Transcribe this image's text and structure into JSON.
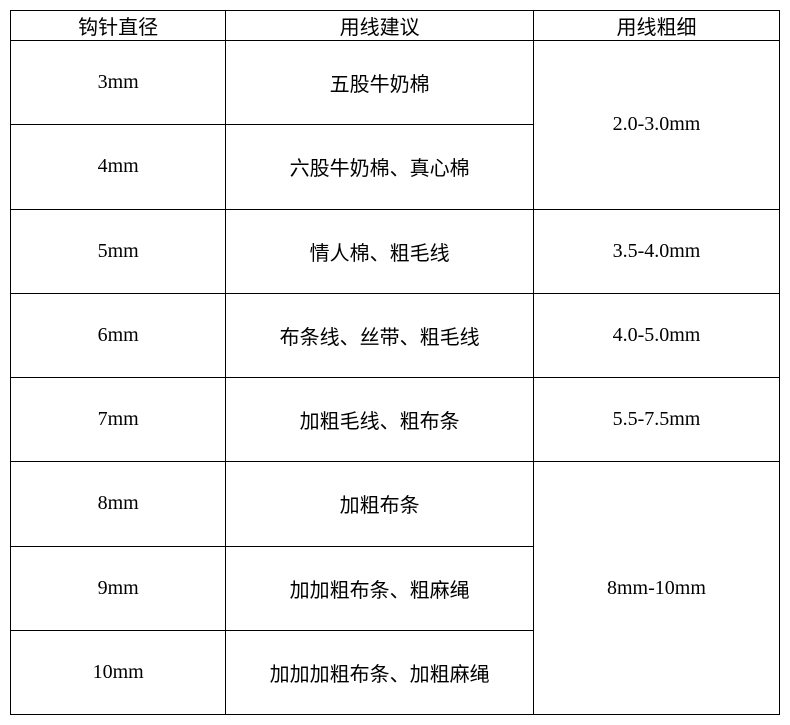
{
  "table": {
    "type": "table",
    "border_color": "#000000",
    "background_color": "#ffffff",
    "text_color": "#000000",
    "font_family": "SimSun",
    "font_size_pt": 15,
    "column_widths_pct": [
      28,
      40,
      32
    ],
    "headers": [
      "钩针直径",
      "用线建议",
      "用线粗细"
    ],
    "rows": [
      {
        "diameter": "3mm",
        "yarn": "五股牛奶棉",
        "thickness": "2.0-3.0mm",
        "thickness_rowspan": 2
      },
      {
        "diameter": "4mm",
        "yarn": "六股牛奶棉、真心棉"
      },
      {
        "diameter": "5mm",
        "yarn": "情人棉、粗毛线",
        "thickness": "3.5-4.0mm",
        "thickness_rowspan": 1
      },
      {
        "diameter": "6mm",
        "yarn": "布条线、丝带、粗毛线",
        "thickness": "4.0-5.0mm",
        "thickness_rowspan": 1
      },
      {
        "diameter": "7mm",
        "yarn": "加粗毛线、粗布条",
        "thickness": "5.5-7.5mm",
        "thickness_rowspan": 1
      },
      {
        "diameter": "8mm",
        "yarn": "加粗布条",
        "thickness": "8mm-10mm",
        "thickness_rowspan": 3
      },
      {
        "diameter": "9mm",
        "yarn": "加加粗布条、粗麻绳"
      },
      {
        "diameter": "10mm",
        "yarn": "加加加粗布条、加粗麻绳"
      }
    ]
  }
}
